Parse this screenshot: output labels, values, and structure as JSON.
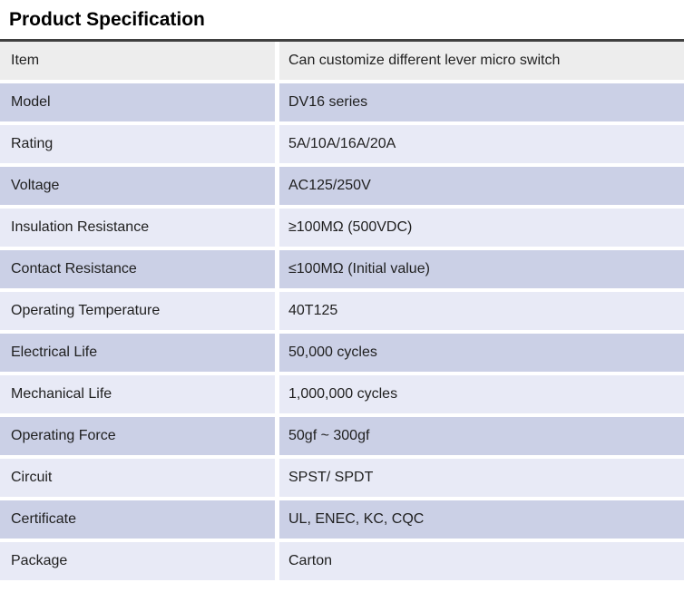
{
  "page": {
    "title": "Product Specification"
  },
  "colors": {
    "header_bg": "#ededed",
    "row_dark": "#cbd0e6",
    "row_light": "#e8eaf6",
    "border_dark": "#404040",
    "text": "#1f1f1f"
  },
  "table": {
    "rows": [
      {
        "label": "Item",
        "value": "Can customize different lever micro switch"
      },
      {
        "label": "Model",
        "value": "DV16 series"
      },
      {
        "label": "Rating",
        "value": "5A/10A/16A/20A"
      },
      {
        "label": "Voltage",
        "value": "AC125/250V"
      },
      {
        "label": "Insulation Resistance",
        "value": "≥100MΩ (500VDC)"
      },
      {
        "label": "Contact Resistance",
        "value": "≤100MΩ (Initial value)"
      },
      {
        "label": "Operating Temperature",
        "value": "40T125"
      },
      {
        "label": "Electrical Life",
        "value": "50,000 cycles"
      },
      {
        "label": "Mechanical Life",
        "value": "1,000,000 cycles"
      },
      {
        "label": "Operating Force",
        "value": "50gf ~ 300gf"
      },
      {
        "label": "Circuit",
        "value": "SPST/ SPDT"
      },
      {
        "label": "Certificate",
        "value": "UL, ENEC, KC, CQC"
      },
      {
        "label": "Package",
        "value": "Carton"
      }
    ]
  }
}
